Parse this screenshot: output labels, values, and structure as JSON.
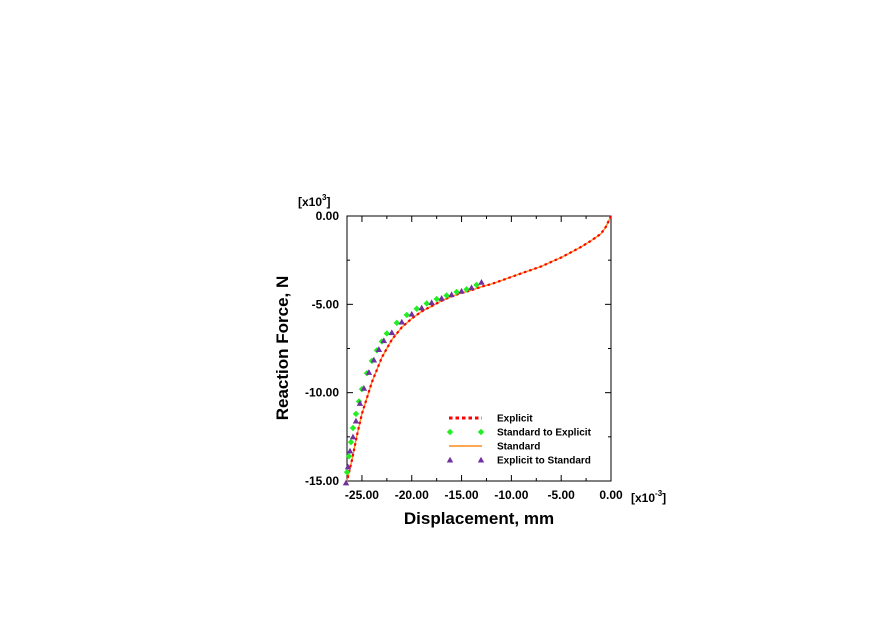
{
  "chart_data": {
    "type": "line",
    "xlabel": "Displacement, mm",
    "ylabel": "Reaction Force, N",
    "x_multiplier": "[x10-3]",
    "x_multiplier_base": "[x10",
    "x_multiplier_exp": "-3",
    "y_multiplier": "[x103]",
    "y_multiplier_base": "[x10",
    "y_multiplier_exp": "3",
    "xlim": [
      -26.5,
      0.0
    ],
    "ylim": [
      -15.0,
      0.0
    ],
    "xticks": [
      -25.0,
      -20.0,
      -15.0,
      -10.0,
      -5.0,
      0.0
    ],
    "yticks": [
      0.0,
      -5.0,
      -10.0,
      -15.0
    ],
    "xtick_labels": [
      "-25.00",
      "-20.00",
      "-15.00",
      "-10.00",
      "-5.00",
      "0.00"
    ],
    "ytick_labels": [
      "0.00",
      "-5.00",
      "-10.00",
      "-15.00"
    ],
    "grid": false,
    "legend_position": "bottom-right",
    "series": [
      {
        "name": "Explicit",
        "style": "dotted",
        "color": "#ff0000",
        "x": [
          0.0,
          -0.5,
          -1.0,
          -2.0,
          -3.0,
          -4.0,
          -5.0,
          -6.0,
          -7.0,
          -8.0,
          -9.0,
          -10.0,
          -11.0,
          -12.0,
          -13.0,
          -14.0,
          -15.0,
          -16.0,
          -17.0,
          -18.0,
          -19.0,
          -20.0,
          -21.0,
          -22.0,
          -23.0,
          -24.0,
          -25.0,
          -25.5,
          -26.0,
          -26.5
        ],
        "y": [
          0.0,
          -0.6,
          -1.0,
          -1.4,
          -1.75,
          -2.05,
          -2.35,
          -2.6,
          -2.85,
          -3.05,
          -3.25,
          -3.45,
          -3.65,
          -3.85,
          -4.0,
          -4.2,
          -4.35,
          -4.55,
          -4.8,
          -5.1,
          -5.4,
          -5.8,
          -6.3,
          -7.0,
          -8.0,
          -9.4,
          -11.2,
          -12.4,
          -13.8,
          -15.0
        ]
      },
      {
        "name": "Standard to Explicit",
        "style": "diamond",
        "color": "#22ee22",
        "x": [
          -13.5,
          -14.5,
          -15.5,
          -16.5,
          -17.5,
          -18.5,
          -19.5,
          -20.5,
          -21.5,
          -22.5,
          -23.0,
          -23.5,
          -24.0,
          -24.5,
          -25.0,
          -25.3,
          -25.6,
          -25.9,
          -26.1,
          -26.3,
          -26.5
        ],
        "y": [
          -3.9,
          -4.15,
          -4.3,
          -4.5,
          -4.7,
          -4.95,
          -5.25,
          -5.6,
          -6.05,
          -6.65,
          -7.1,
          -7.6,
          -8.2,
          -8.9,
          -9.8,
          -10.5,
          -11.2,
          -12.0,
          -12.8,
          -13.6,
          -14.5
        ]
      },
      {
        "name": "Standard",
        "style": "solid",
        "color": "#ff8c1a",
        "x": [
          0.0,
          -0.5,
          -1.0,
          -2.0,
          -3.0,
          -4.0,
          -5.0,
          -6.0,
          -7.0,
          -8.0,
          -9.0,
          -10.0,
          -11.0,
          -12.0,
          -13.0,
          -14.0,
          -15.0,
          -16.0,
          -17.0,
          -18.0,
          -19.0,
          -20.0,
          -21.0,
          -22.0,
          -23.0,
          -24.0,
          -25.0,
          -25.5,
          -26.0,
          -26.5
        ],
        "y": [
          0.0,
          -0.6,
          -1.0,
          -1.4,
          -1.75,
          -2.05,
          -2.35,
          -2.6,
          -2.85,
          -3.05,
          -3.25,
          -3.45,
          -3.65,
          -3.85,
          -4.0,
          -4.2,
          -4.35,
          -4.55,
          -4.8,
          -5.1,
          -5.4,
          -5.8,
          -6.3,
          -7.0,
          -8.0,
          -9.4,
          -11.2,
          -12.4,
          -13.8,
          -15.0
        ]
      },
      {
        "name": "Explicit to Standard",
        "style": "triangle",
        "color": "#7030a0",
        "x": [
          -13.0,
          -14.0,
          -15.0,
          -16.0,
          -17.0,
          -18.0,
          -19.0,
          -20.0,
          -21.0,
          -22.0,
          -22.8,
          -23.3,
          -23.8,
          -24.3,
          -24.8,
          -25.2,
          -25.6,
          -25.9,
          -26.2,
          -26.4,
          -26.6
        ],
        "y": [
          -3.75,
          -4.05,
          -4.25,
          -4.45,
          -4.65,
          -4.9,
          -5.2,
          -5.55,
          -6.0,
          -6.6,
          -7.05,
          -7.55,
          -8.15,
          -8.85,
          -9.75,
          -10.6,
          -11.6,
          -12.5,
          -13.3,
          -14.2,
          -15.1
        ]
      }
    ]
  }
}
